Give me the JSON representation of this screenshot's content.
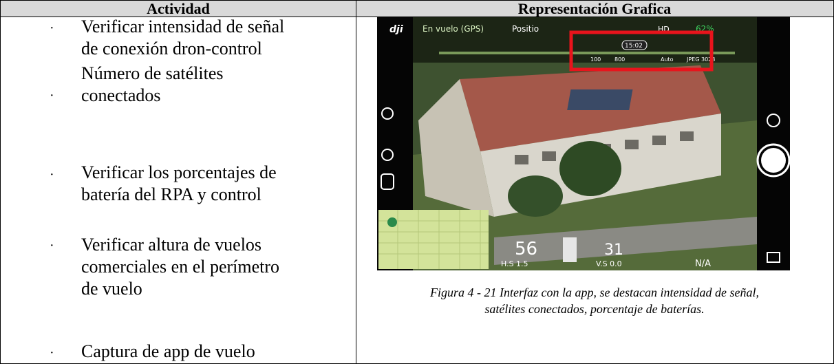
{
  "table": {
    "headers": [
      "Actividad",
      "Representación Grafica"
    ],
    "bullets": [
      [
        "Verificar intensidad de señal",
        "de conexión dron-control"
      ],
      [
        "Número de satélites",
        "conectados"
      ],
      [
        "Verificar los porcentajes de",
        "batería del RPA y control"
      ],
      [
        "Verificar altura de vuelos",
        "comerciales en el perímetro",
        "de vuelo"
      ],
      [
        "Captura de app de vuelo"
      ]
    ]
  },
  "figure": {
    "caption": [
      "Figura 4 - 21 Interfaz con la app, se destacan intensidad de señal,",
      "satélites conectados, porcentaje de baterías."
    ],
    "app": {
      "flight_mode": "En vuelo (GPS)",
      "mode": "Positio",
      "hd": "HD",
      "battery": "62%",
      "time": "15:02",
      "iso": "100",
      "shutter": "800",
      "wb": "Auto",
      "format": "JPEG 3028",
      "distance": "56",
      "height": "31",
      "hs": "H.S 1.5",
      "vs": "V.S 0.0",
      "na": "N/A"
    }
  }
}
